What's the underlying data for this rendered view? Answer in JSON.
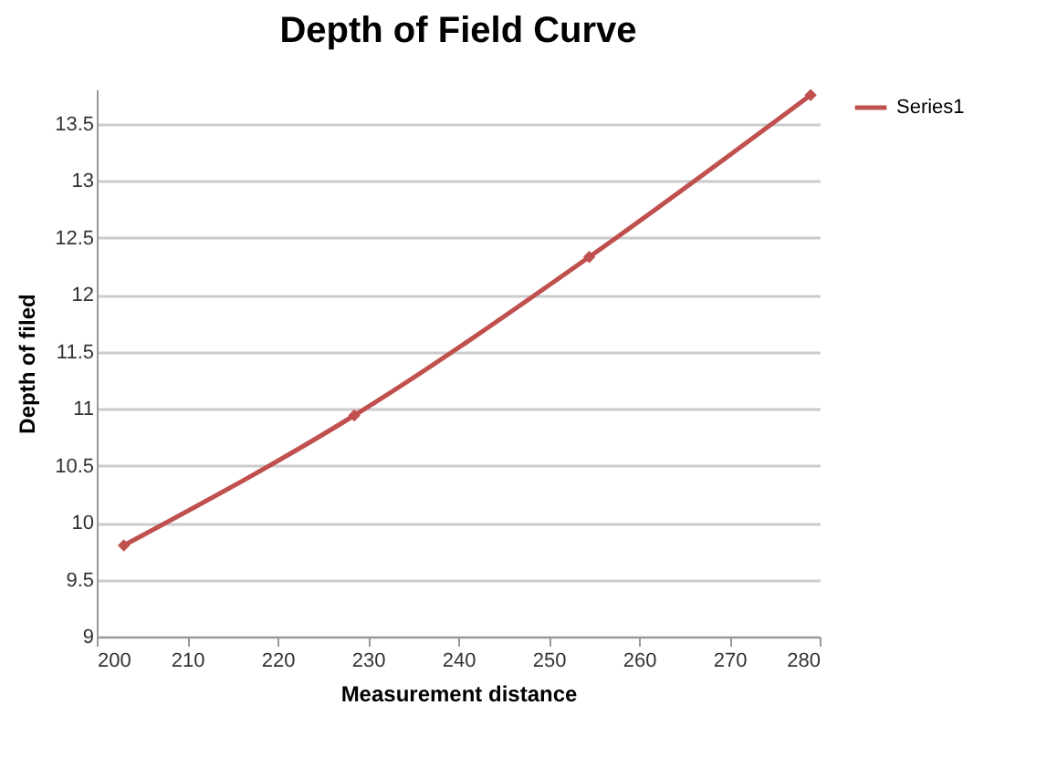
{
  "chart_data": {
    "type": "line",
    "title": "Depth of Field Curve",
    "xlabel": "Measurement distance",
    "ylabel": "Depth of filed",
    "x": [
      203,
      228.5,
      254.5,
      279
    ],
    "series": [
      {
        "name": "Series1",
        "color": "#c0504d",
        "values": [
          9.8,
          10.94,
          12.33,
          13.75
        ]
      }
    ],
    "xlim": [
      200,
      280
    ],
    "xticks": [
      200,
      210,
      220,
      230,
      240,
      250,
      260,
      270,
      280
    ],
    "ylim": [
      9,
      13.8
    ],
    "yticks": [
      9,
      9.5,
      10,
      10.5,
      11,
      11.5,
      12,
      12.5,
      13,
      13.5
    ],
    "grid": "y",
    "legend": "right",
    "marker": "diamond",
    "line_style": "solid"
  }
}
